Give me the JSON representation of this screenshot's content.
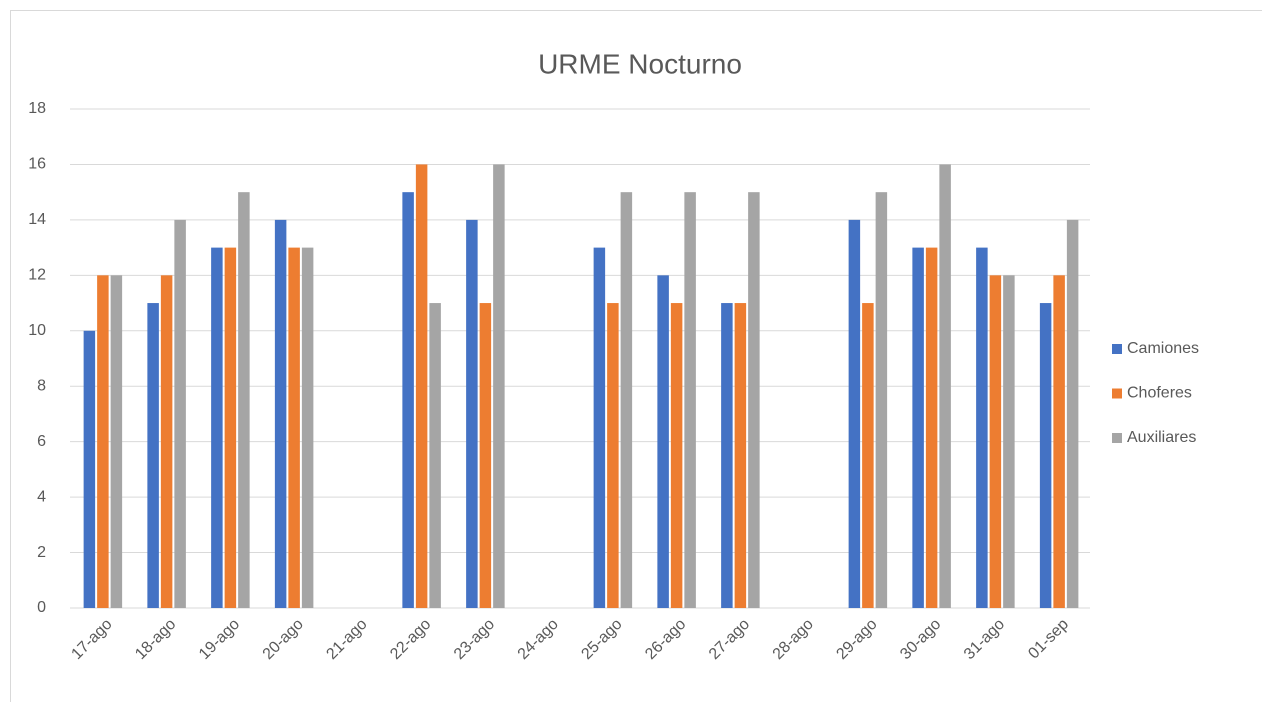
{
  "chart_data": {
    "type": "bar",
    "title": "URME Nocturno",
    "categories": [
      "17-ago",
      "18-ago",
      "19-ago",
      "20-ago",
      "21-ago",
      "22-ago",
      "23-ago",
      "24-ago",
      "25-ago",
      "26-ago",
      "27-ago",
      "28-ago",
      "29-ago",
      "30-ago",
      "31-ago",
      "01-sep"
    ],
    "series": [
      {
        "name": "Camiones",
        "color": "#4472c4",
        "values": [
          10,
          11,
          13,
          14,
          null,
          15,
          14,
          null,
          13,
          12,
          11,
          null,
          14,
          13,
          13,
          11
        ]
      },
      {
        "name": "Choferes",
        "color": "#ed7d31",
        "values": [
          12,
          12,
          13,
          13,
          null,
          16,
          11,
          null,
          11,
          11,
          11,
          null,
          11,
          13,
          12,
          12
        ]
      },
      {
        "name": "Auxiliares",
        "color": "#a5a5a5",
        "values": [
          12,
          14,
          15,
          13,
          null,
          11,
          16,
          null,
          15,
          15,
          15,
          null,
          15,
          16,
          12,
          14
        ]
      }
    ],
    "ylim": [
      0,
      18
    ],
    "yticks": [
      0,
      2,
      4,
      6,
      8,
      10,
      12,
      14,
      16,
      18
    ],
    "grid": true,
    "legend": "right"
  }
}
